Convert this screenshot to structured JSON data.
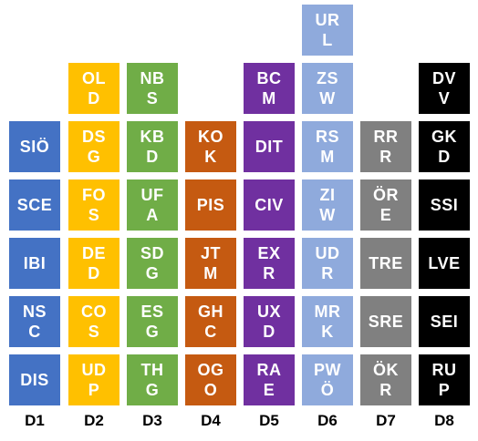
{
  "colors": {
    "blue": "#4472C4",
    "gold": "#FFC000",
    "green": "#70AD47",
    "orange": "#C55A11",
    "purple": "#7030A0",
    "lightblue": "#8FAADC",
    "gray": "#808080",
    "black": "#000000",
    "label": "#000000"
  },
  "columns": [
    {
      "label": "D1",
      "color": "blue",
      "tiles": [
        "SIÖ",
        "SCE",
        "IBI",
        "NS\nC",
        "DIS"
      ]
    },
    {
      "label": "D2",
      "color": "gold",
      "tiles": [
        "OL\nD",
        "DS\nG",
        "FO\nS",
        "DE\nD",
        "CO\nS",
        "UD\nP"
      ]
    },
    {
      "label": "D3",
      "color": "green",
      "tiles": [
        "NB\nS",
        "KB\nD",
        "UF\nA",
        "SD\nG",
        "ES\nG",
        "TH\nG"
      ]
    },
    {
      "label": "D4",
      "color": "orange",
      "tiles": [
        "KO\nK",
        "PIS",
        "JT\nM",
        "GH\nC",
        "OG\nO"
      ]
    },
    {
      "label": "D5",
      "color": "purple",
      "tiles": [
        "BC\nM",
        "DIT",
        "CIV",
        "EX\nR",
        "UX\nD",
        "RA\nE"
      ]
    },
    {
      "label": "D6",
      "color": "lightblue",
      "tiles": [
        "UR\nL",
        "ZS\nW",
        "RS\nM",
        "ZI\nW",
        "UD\nR",
        "MR\nK",
        "PW\nÖ"
      ]
    },
    {
      "label": "D7",
      "color": "gray",
      "tiles": [
        "RR\nR",
        "ÖR\nE",
        "TRE",
        "SRE",
        "ÖK\nR"
      ]
    },
    {
      "label": "D8",
      "color": "black",
      "tiles": [
        "DV\nV",
        "GK\nD",
        "SSI",
        "LVE",
        "SEI",
        "RU\nP"
      ]
    }
  ]
}
